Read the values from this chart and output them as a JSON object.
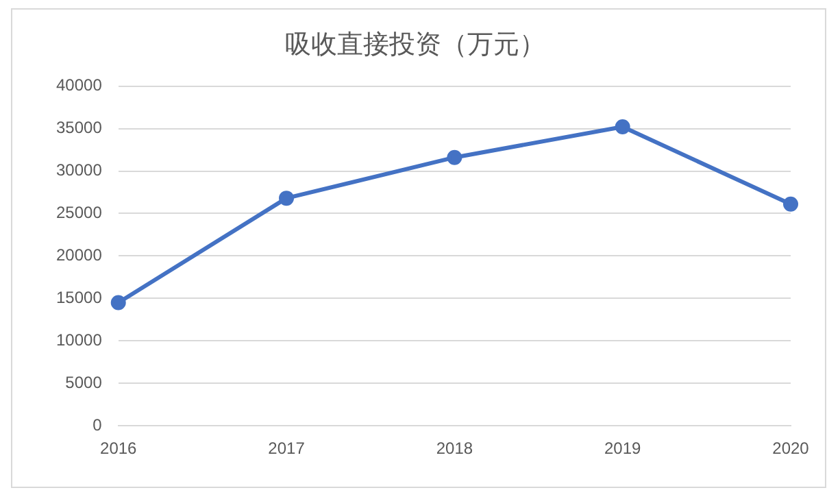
{
  "chart_data": {
    "type": "line",
    "title": "吸收直接投资（万元）",
    "categories": [
      "2016",
      "2017",
      "2018",
      "2019",
      "2020"
    ],
    "series": [
      {
        "color": "#4472c4",
        "values": [
          14500,
          26800,
          31600,
          35200,
          26100
        ]
      }
    ],
    "ylim": [
      0,
      40000
    ],
    "yticks": [
      0,
      5000,
      10000,
      15000,
      20000,
      25000,
      30000,
      35000,
      40000
    ],
    "grid": "y",
    "legend": false,
    "marker": "circle",
    "line_style": "solid"
  }
}
